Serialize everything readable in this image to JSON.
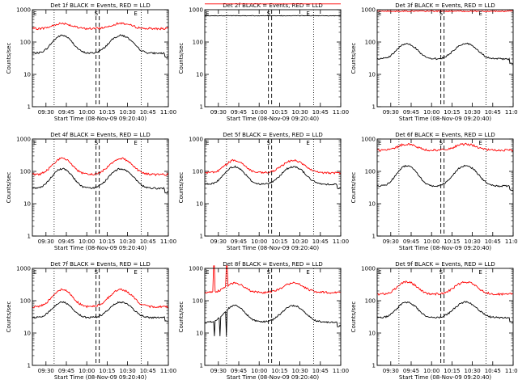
{
  "chart_data": [
    {
      "type": "line",
      "title": "Det 1f BLACK = Events, RED = LLD",
      "xlabel": "Start Time (08-Nov-09 09:20:40)",
      "ylabel": "Counts/sec",
      "ylog": true,
      "ylim": [
        1,
        1000
      ],
      "ytick_labels": [
        "1",
        "10",
        "100",
        "1000"
      ],
      "xlim": [
        "09:20",
        "11:00"
      ],
      "xtick_labels": [
        "09:30",
        "09:45",
        "10:00",
        "10:15",
        "10:30",
        "10:45",
        "11:00"
      ],
      "top_markers": [
        "E",
        "S",
        "E"
      ],
      "red_profile": "wave",
      "red_level": [
        260,
        380
      ],
      "black_level": [
        45,
        160
      ],
      "series": [
        {
          "name": "Events",
          "color": "#000000"
        },
        {
          "name": "LLD",
          "color": "#ff0000"
        }
      ]
    },
    {
      "type": "line",
      "title": "Det 2f BLACK = Events, RED = LLD",
      "xlabel": "Start Time (08-Nov-09 09:20:40)",
      "ylabel": "Counts/sec",
      "ylog": true,
      "ylim": [
        1,
        1000
      ],
      "ytick_labels": [
        "1",
        "10",
        "100",
        "1000"
      ],
      "xlim": [
        "09:20",
        "11:00"
      ],
      "xtick_labels": [
        "09:30",
        "09:45",
        "10:00",
        "10:15",
        "10:30",
        "10:45",
        "11:00"
      ],
      "top_markers": [
        "E",
        "S",
        "E"
      ],
      "red_profile": "flat",
      "red_level": [
        2000,
        2000
      ],
      "black_level": [
        650,
        650
      ],
      "series": [
        {
          "name": "Events",
          "color": "#000000"
        },
        {
          "name": "LLD",
          "color": "#ff0000"
        }
      ]
    },
    {
      "type": "line",
      "title": "Det 3f BLACK = Events, RED = LLD",
      "xlabel": "Start Time (08-Nov-09 09:20:40)",
      "ylabel": "Counts/sec",
      "ylog": true,
      "ylim": [
        1,
        1000
      ],
      "ytick_labels": [
        "1",
        "10",
        "100",
        "1000"
      ],
      "xlim": [
        "09:20",
        "11:00"
      ],
      "xtick_labels": [
        "09:30",
        "09:45",
        "10:00",
        "10:15",
        "10:30",
        "10:45",
        "11:00"
      ],
      "top_markers": [
        "E",
        "S",
        "E"
      ],
      "red_profile": "flat",
      "red_level": [
        900,
        900
      ],
      "black_level": [
        30,
        90
      ],
      "series": [
        {
          "name": "Events",
          "color": "#000000"
        },
        {
          "name": "LLD",
          "color": "#ff0000"
        }
      ]
    },
    {
      "type": "line",
      "title": "Det 4f BLACK = Events, RED = LLD",
      "xlabel": "Start Time (08-Nov-09 09:20:40)",
      "ylabel": "Counts/sec",
      "ylog": true,
      "ylim": [
        1,
        1000
      ],
      "ytick_labels": [
        "1",
        "10",
        "100",
        "1000"
      ],
      "xlim": [
        "09:20",
        "11:00"
      ],
      "xtick_labels": [
        "09:30",
        "09:45",
        "10:00",
        "10:15",
        "10:30",
        "10:45",
        "11:00"
      ],
      "top_markers": [
        "E",
        "S",
        "E"
      ],
      "red_profile": "wave",
      "red_level": [
        80,
        250
      ],
      "black_level": [
        30,
        120
      ],
      "series": [
        {
          "name": "Events",
          "color": "#000000"
        },
        {
          "name": "LLD",
          "color": "#ff0000"
        }
      ]
    },
    {
      "type": "line",
      "title": "Det 5f BLACK = Events, RED = LLD",
      "xlabel": "Start Time (08-Nov-09 09:20:40)",
      "ylabel": "Counts/sec",
      "ylog": true,
      "ylim": [
        1,
        1000
      ],
      "ytick_labels": [
        "1",
        "10",
        "100",
        "1000"
      ],
      "xlim": [
        "09:20",
        "11:00"
      ],
      "xtick_labels": [
        "09:30",
        "09:45",
        "10:00",
        "10:15",
        "10:30",
        "10:45",
        "11:00"
      ],
      "top_markers": [
        "E",
        "S",
        "E"
      ],
      "red_profile": "wave",
      "red_level": [
        90,
        220
      ],
      "black_level": [
        40,
        140
      ],
      "series": [
        {
          "name": "Events",
          "color": "#000000"
        },
        {
          "name": "LLD",
          "color": "#ff0000"
        }
      ]
    },
    {
      "type": "line",
      "title": "Det 6f BLACK = Events, RED = LLD",
      "xlabel": "Start Time (08-Nov-09 09:20:40)",
      "ylabel": "Counts/sec",
      "ylog": true,
      "ylim": [
        1,
        1000
      ],
      "ytick_labels": [
        "1",
        "10",
        "100",
        "1000"
      ],
      "xlim": [
        "09:20",
        "11:00"
      ],
      "xtick_labels": [
        "09:30",
        "09:45",
        "10:00",
        "10:15",
        "10:30",
        "10:45",
        "11:00"
      ],
      "top_markers": [
        "E",
        "S",
        "E"
      ],
      "red_profile": "wave",
      "red_level": [
        450,
        700
      ],
      "black_level": [
        35,
        150
      ],
      "series": [
        {
          "name": "Events",
          "color": "#000000"
        },
        {
          "name": "LLD",
          "color": "#ff0000"
        }
      ]
    },
    {
      "type": "line",
      "title": "Det 7f BLACK = Events, RED = LLD",
      "xlabel": "Start Time (08-Nov-09 09:20:40)",
      "ylabel": "Counts/sec",
      "ylog": true,
      "ylim": [
        1,
        1000
      ],
      "ytick_labels": [
        "1",
        "10",
        "100",
        "1000"
      ],
      "xlim": [
        "09:20",
        "11:00"
      ],
      "xtick_labels": [
        "09:30",
        "09:45",
        "10:00",
        "10:15",
        "10:30",
        "10:45",
        "11:00"
      ],
      "top_markers": [
        "E",
        "S",
        "E"
      ],
      "red_profile": "wave",
      "red_level": [
        65,
        220
      ],
      "black_level": [
        30,
        90
      ],
      "series": [
        {
          "name": "Events",
          "color": "#000000"
        },
        {
          "name": "LLD",
          "color": "#ff0000"
        }
      ]
    },
    {
      "type": "line",
      "title": "Det 8f BLACK = Events, RED = LLD",
      "xlabel": "Start Time (08-Nov-09 09:20:40)",
      "ylabel": "Counts/sec",
      "ylog": true,
      "ylim": [
        1,
        1000
      ],
      "ytick_labels": [
        "1",
        "10",
        "100",
        "1000"
      ],
      "xlim": [
        "09:20",
        "11:00"
      ],
      "xtick_labels": [
        "09:30",
        "09:45",
        "10:00",
        "10:15",
        "10:30",
        "10:45",
        "11:00"
      ],
      "top_markers": [
        "E",
        "S",
        "E"
      ],
      "red_profile": "spiky",
      "red_level": [
        180,
        350
      ],
      "black_level": [
        22,
        70
      ],
      "series": [
        {
          "name": "Events",
          "color": "#000000"
        },
        {
          "name": "LLD",
          "color": "#ff0000"
        }
      ]
    },
    {
      "type": "line",
      "title": "Det 9f BLACK = Events, RED = LLD",
      "xlabel": "Start Time (08-Nov-09 09:20:40)",
      "ylabel": "Counts/sec",
      "ylog": true,
      "ylim": [
        1,
        1000
      ],
      "ytick_labels": [
        "1",
        "10",
        "100",
        "1000"
      ],
      "xlim": [
        "09:20",
        "11:00"
      ],
      "xtick_labels": [
        "09:30",
        "09:45",
        "10:00",
        "10:15",
        "10:30",
        "10:45",
        "11:00"
      ],
      "top_markers": [
        "E",
        "S",
        "E"
      ],
      "red_profile": "wave",
      "red_level": [
        160,
        380
      ],
      "black_level": [
        30,
        90
      ],
      "series": [
        {
          "name": "Events",
          "color": "#000000"
        },
        {
          "name": "LLD",
          "color": "#ff0000"
        }
      ]
    }
  ]
}
